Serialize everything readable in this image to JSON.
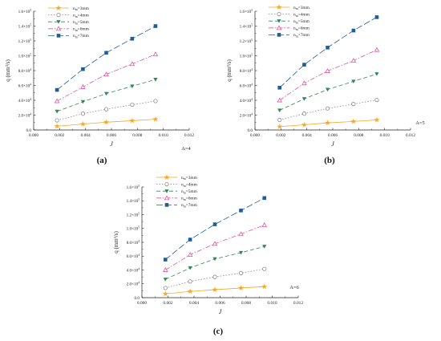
{
  "chart_data": [
    {
      "type": "line",
      "panel_label": "(a)",
      "annotation": "A=4",
      "xlabel": "J",
      "ylabel": "q (mm³/s)",
      "xlim": [
        0.0,
        0.012
      ],
      "ylim": [
        0,
        160000
      ],
      "xticks": [
        "0.000",
        "0.002",
        "0.004",
        "0.006",
        "0.008",
        "0.010",
        "0.012"
      ],
      "yticks": [
        "0.0",
        "2.0×10⁴",
        "4.0×10⁴",
        "6.0×10⁴",
        "8.0×10⁴",
        "1.0×10⁵",
        "1.2×10⁵",
        "1.4×10⁵",
        "1.6×10⁵"
      ],
      "x": [
        0.0018,
        0.0038,
        0.0056,
        0.0076,
        0.0094
      ],
      "series": [
        {
          "name": "nₘ=3mm",
          "values": [
            5000,
            8000,
            10500,
            12500,
            14500
          ]
        },
        {
          "name": "nₘ=4mm",
          "values": [
            13000,
            22000,
            28000,
            34000,
            39000
          ]
        },
        {
          "name": "nₘ=5mm",
          "values": [
            25000,
            38000,
            49000,
            59000,
            68000
          ]
        },
        {
          "name": "nₘ=6mm",
          "values": [
            39000,
            58000,
            75000,
            89000,
            102000
          ]
        },
        {
          "name": "nₘ=7mm",
          "values": [
            54000,
            82000,
            104000,
            123000,
            140000
          ]
        }
      ],
      "grid": false,
      "legend_position": "top-left"
    },
    {
      "type": "line",
      "panel_label": "(b)",
      "annotation": "A=5",
      "xlabel": "J",
      "ylabel": "q (mm³/s)",
      "xlim": [
        0.0,
        0.012
      ],
      "ylim": [
        0,
        160000
      ],
      "xticks": [
        "0.000",
        "0.002",
        "0.004",
        "0.006",
        "0.008",
        "0.010",
        "0.012"
      ],
      "yticks": [
        "0.0",
        "2.0×10⁴",
        "4.0×10⁴",
        "6.0×10⁴",
        "8.0×10⁴",
        "1.0×10⁵",
        "1.2×10⁵",
        "1.4×10⁵",
        "1.6×10⁵"
      ],
      "x": [
        0.0019,
        0.0038,
        0.0056,
        0.0076,
        0.0094
      ],
      "series": [
        {
          "name": "nₘ=3mm",
          "values": [
            4500,
            7000,
            9500,
            11500,
            13500
          ]
        },
        {
          "name": "nₘ=4mm",
          "values": [
            13500,
            22000,
            29000,
            35000,
            40500
          ]
        },
        {
          "name": "nₘ=5mm",
          "values": [
            26500,
            42000,
            54500,
            65500,
            75500
          ]
        },
        {
          "name": "nₘ=6mm",
          "values": [
            40000,
            63000,
            79500,
            93500,
            108000
          ]
        },
        {
          "name": "nₘ=7mm",
          "values": [
            57000,
            88000,
            111000,
            134000,
            152000
          ]
        }
      ],
      "grid": false,
      "legend_position": "top-left"
    },
    {
      "type": "line",
      "panel_label": "(c)",
      "annotation": "A=6",
      "xlabel": "J",
      "ylabel": "q (mm³/s)",
      "xlim": [
        0.0,
        0.012
      ],
      "ylim": [
        0,
        160000
      ],
      "xticks": [
        "0.000",
        "0.002",
        "0.004",
        "0.006",
        "0.008",
        "0.010",
        "0.012"
      ],
      "yticks": [
        "0.0",
        "2.0×10⁴",
        "4.0×10⁴",
        "6.0×10⁴",
        "8.0×10⁴",
        "1.0×10⁵",
        "1.2×10⁵",
        "1.4×10⁵",
        "1.6×10⁵"
      ],
      "x": [
        0.0018,
        0.0037,
        0.0056,
        0.0076,
        0.0094
      ],
      "series": [
        {
          "name": "nₘ=3mm",
          "values": [
            5500,
            9000,
            11500,
            14000,
            16000
          ]
        },
        {
          "name": "nₘ=4mm",
          "values": [
            14000,
            23500,
            30000,
            35500,
            41500
          ]
        },
        {
          "name": "nₘ=5mm",
          "values": [
            26500,
            43000,
            56000,
            65000,
            74000
          ]
        },
        {
          "name": "nₘ=6mm",
          "values": [
            40000,
            62000,
            78000,
            92000,
            105000
          ]
        },
        {
          "name": "nₘ=7mm",
          "values": [
            55000,
            84000,
            106000,
            126000,
            144000
          ]
        }
      ],
      "grid": false,
      "legend_position": "top-left"
    }
  ],
  "series_styles": [
    {
      "color": "#f5a623",
      "marker": "star",
      "dash": ""
    },
    {
      "color": "#8a8a8a",
      "marker": "circle-open",
      "dash": "1.5,2"
    },
    {
      "color": "#2e8b57",
      "marker": "triangle-down",
      "dash": "5,3"
    },
    {
      "color": "#e0569a",
      "marker": "triangle-open",
      "dash": "6,2,1.5,2"
    },
    {
      "color": "#1f5d99",
      "marker": "square",
      "dash": "8,3"
    }
  ]
}
